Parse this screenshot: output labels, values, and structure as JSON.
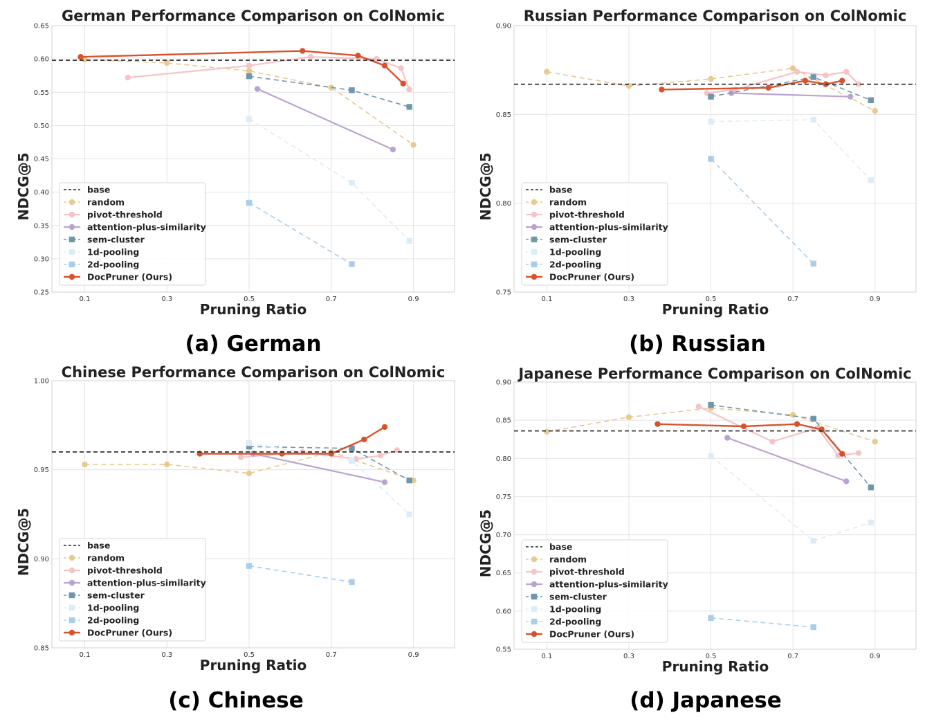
{
  "colors": {
    "base": "#222222",
    "random": "#e8c98f",
    "pivot-threshold": "#f6c3c6",
    "attention-plus-similarity": "#b9a4cf",
    "sem-cluster": "#6f97ab",
    "1d-pooling": "#dcedf9",
    "2d-pooling": "#a9cdeb",
    "docpruner": "#d9522c"
  },
  "chart_data": [
    {
      "type": "line",
      "title": "German Performance Comparison on ColNomic",
      "xlabel": "Pruning Ratio",
      "ylabel": "NDCG@5",
      "caption": "(a) German",
      "xlim": [
        0.02,
        1.0
      ],
      "ylim": [
        0.25,
        0.65
      ],
      "xticks": [
        "0.1",
        "0.3",
        "0.5",
        "0.7",
        "0.9"
      ],
      "yticks": [
        "0.25",
        "0.30",
        "0.35",
        "0.40",
        "0.45",
        "0.50",
        "0.55",
        "0.60",
        "0.65"
      ],
      "base": 0.598,
      "legend": [
        "base",
        "random",
        "pivot-threshold",
        "attention-plus-similarity",
        "sem-cluster",
        "1d-pooling",
        "2d-pooling",
        "DocPruner (Ours)"
      ],
      "series": [
        {
          "key": "random",
          "name": "random",
          "points": [
            [
              0.1,
              0.599
            ],
            [
              0.3,
              0.594
            ],
            [
              0.5,
              0.582
            ],
            [
              0.7,
              0.557
            ],
            [
              0.9,
              0.471
            ]
          ]
        },
        {
          "key": "pivot-threshold",
          "name": "pivot-threshold",
          "points": [
            [
              0.205,
              0.572
            ],
            [
              0.5,
              0.59
            ],
            [
              0.65,
              0.603
            ],
            [
              0.81,
              0.6
            ],
            [
              0.87,
              0.586
            ],
            [
              0.89,
              0.554
            ]
          ]
        },
        {
          "key": "attention-plus-similarity",
          "name": "attention-plus-similarity",
          "points": [
            [
              0.52,
              0.555
            ],
            [
              0.85,
              0.464
            ]
          ]
        },
        {
          "key": "sem-cluster",
          "name": "sem-cluster",
          "points": [
            [
              0.5,
              0.574
            ],
            [
              0.75,
              0.553
            ],
            [
              0.89,
              0.528
            ]
          ]
        },
        {
          "key": "1d-pooling",
          "name": "1d-pooling",
          "points": [
            [
              0.5,
              0.51
            ],
            [
              0.75,
              0.414
            ],
            [
              0.89,
              0.327
            ]
          ]
        },
        {
          "key": "2d-pooling",
          "name": "2d-pooling",
          "points": [
            [
              0.5,
              0.384
            ],
            [
              0.75,
              0.292
            ]
          ]
        },
        {
          "key": "docpruner",
          "name": "DocPruner (Ours)",
          "points": [
            [
              0.09,
              0.603
            ],
            [
              0.63,
              0.612
            ],
            [
              0.765,
              0.605
            ],
            [
              0.83,
              0.59
            ],
            [
              0.875,
              0.563
            ]
          ]
        }
      ]
    },
    {
      "type": "line",
      "title": "Russian Performance Comparison on ColNomic",
      "xlabel": "Pruning Ratio",
      "ylabel": "NDCG@5",
      "caption": "(b) Russian",
      "xlim": [
        0.02,
        1.0
      ],
      "ylim": [
        0.75,
        0.9
      ],
      "xticks": [
        "0.1",
        "0.3",
        "0.5",
        "0.7",
        "0.9"
      ],
      "yticks": [
        "0.75",
        "0.80",
        "0.85",
        "0.90"
      ],
      "base": 0.867,
      "legend": [
        "base",
        "random",
        "pivot-threshold",
        "attention-plus-similarity",
        "sem-cluster",
        "1d-pooling",
        "2d-pooling",
        "DocPruner (Ours)"
      ],
      "series": [
        {
          "key": "random",
          "name": "random",
          "points": [
            [
              0.1,
              0.874
            ],
            [
              0.3,
              0.866
            ],
            [
              0.5,
              0.87
            ],
            [
              0.7,
              0.876
            ],
            [
              0.9,
              0.852
            ]
          ]
        },
        {
          "key": "pivot-threshold",
          "name": "pivot-threshold",
          "points": [
            [
              0.49,
              0.862
            ],
            [
              0.56,
              0.864
            ],
            [
              0.71,
              0.874
            ],
            [
              0.78,
              0.872
            ],
            [
              0.83,
              0.874
            ],
            [
              0.86,
              0.867
            ]
          ]
        },
        {
          "key": "attention-plus-similarity",
          "name": "attention-plus-similarity",
          "points": [
            [
              0.55,
              0.862
            ],
            [
              0.84,
              0.86
            ]
          ]
        },
        {
          "key": "sem-cluster",
          "name": "sem-cluster",
          "points": [
            [
              0.5,
              0.86
            ],
            [
              0.75,
              0.871
            ],
            [
              0.89,
              0.858
            ]
          ]
        },
        {
          "key": "1d-pooling",
          "name": "1d-pooling",
          "points": [
            [
              0.5,
              0.846
            ],
            [
              0.75,
              0.847
            ],
            [
              0.89,
              0.813
            ]
          ]
        },
        {
          "key": "2d-pooling",
          "name": "2d-pooling",
          "points": [
            [
              0.5,
              0.825
            ],
            [
              0.75,
              0.766
            ]
          ]
        },
        {
          "key": "docpruner",
          "name": "DocPruner (Ours)",
          "points": [
            [
              0.38,
              0.864
            ],
            [
              0.64,
              0.865
            ],
            [
              0.73,
              0.869
            ],
            [
              0.78,
              0.867
            ],
            [
              0.82,
              0.869
            ]
          ]
        }
      ]
    },
    {
      "type": "line",
      "title": "Chinese Performance Comparison on ColNomic",
      "xlabel": "Pruning Ratio",
      "ylabel": "NDCG@5",
      "caption": "(c) Chinese",
      "xlim": [
        0.02,
        1.0
      ],
      "ylim": [
        0.85,
        1.0
      ],
      "xticks": [
        "0.1",
        "0.3",
        "0.5",
        "0.7",
        "0.9"
      ],
      "yticks": [
        "0.85",
        "0.90",
        "0.95",
        "1.00"
      ],
      "base": 0.96,
      "legend": [
        "base",
        "random",
        "pivot-threshold",
        "attention-plus-similarity",
        "sem-cluster",
        "1d-pooling",
        "2d-pooling",
        "DocPruner (Ours)"
      ],
      "series": [
        {
          "key": "random",
          "name": "random",
          "points": [
            [
              0.1,
              0.953
            ],
            [
              0.3,
              0.953
            ],
            [
              0.5,
              0.948
            ],
            [
              0.7,
              0.96
            ],
            [
              0.9,
              0.944
            ]
          ]
        },
        {
          "key": "pivot-threshold",
          "name": "pivot-threshold",
          "points": [
            [
              0.48,
              0.957
            ],
            [
              0.63,
              0.96
            ],
            [
              0.76,
              0.956
            ],
            [
              0.82,
              0.958
            ],
            [
              0.86,
              0.961
            ]
          ]
        },
        {
          "key": "attention-plus-similarity",
          "name": "attention-plus-similarity",
          "points": [
            [
              0.51,
              0.959
            ],
            [
              0.83,
              0.943
            ]
          ]
        },
        {
          "key": "sem-cluster",
          "name": "sem-cluster",
          "points": [
            [
              0.5,
              0.963
            ],
            [
              0.75,
              0.962
            ],
            [
              0.89,
              0.944
            ]
          ]
        },
        {
          "key": "1d-pooling",
          "name": "1d-pooling",
          "points": [
            [
              0.5,
              0.965
            ],
            [
              0.75,
              0.955
            ],
            [
              0.89,
              0.925
            ]
          ]
        },
        {
          "key": "2d-pooling",
          "name": "2d-pooling",
          "points": [
            [
              0.5,
              0.896
            ],
            [
              0.75,
              0.887
            ]
          ]
        },
        {
          "key": "docpruner",
          "name": "DocPruner (Ours)",
          "points": [
            [
              0.38,
              0.959
            ],
            [
              0.58,
              0.959
            ],
            [
              0.7,
              0.959
            ],
            [
              0.78,
              0.967
            ],
            [
              0.83,
              0.974
            ]
          ]
        }
      ]
    },
    {
      "type": "line",
      "title": "Japanese Performance Comparison on ColNomic",
      "xlabel": "Pruning Ratio",
      "ylabel": "NDCG@5",
      "caption": "(d) Japanese",
      "xlim": [
        0.02,
        1.0
      ],
      "ylim": [
        0.55,
        0.9
      ],
      "xticks": [
        "0.1",
        "0.3",
        "0.5",
        "0.7",
        "0.9"
      ],
      "yticks": [
        "0.55",
        "0.60",
        "0.65",
        "0.70",
        "0.75",
        "0.80",
        "0.85",
        "0.90"
      ],
      "base": 0.836,
      "legend": [
        "base",
        "random",
        "pivot-threshold",
        "attention-plus-similarity",
        "sem-cluster",
        "1d-pooling",
        "2d-pooling",
        "DocPruner (Ours)"
      ],
      "series": [
        {
          "key": "random",
          "name": "random",
          "points": [
            [
              0.1,
              0.835
            ],
            [
              0.3,
              0.854
            ],
            [
              0.5,
              0.866
            ],
            [
              0.7,
              0.857
            ],
            [
              0.9,
              0.822
            ]
          ]
        },
        {
          "key": "pivot-threshold",
          "name": "pivot-threshold",
          "points": [
            [
              0.47,
              0.868
            ],
            [
              0.65,
              0.822
            ],
            [
              0.76,
              0.84
            ],
            [
              0.81,
              0.804
            ],
            [
              0.86,
              0.807
            ]
          ]
        },
        {
          "key": "attention-plus-similarity",
          "name": "attention-plus-similarity",
          "points": [
            [
              0.54,
              0.827
            ],
            [
              0.83,
              0.77
            ]
          ]
        },
        {
          "key": "sem-cluster",
          "name": "sem-cluster",
          "points": [
            [
              0.5,
              0.87
            ],
            [
              0.75,
              0.852
            ],
            [
              0.89,
              0.762
            ]
          ]
        },
        {
          "key": "1d-pooling",
          "name": "1d-pooling",
          "points": [
            [
              0.5,
              0.803
            ],
            [
              0.75,
              0.692
            ],
            [
              0.89,
              0.716
            ]
          ]
        },
        {
          "key": "2d-pooling",
          "name": "2d-pooling",
          "points": [
            [
              0.5,
              0.591
            ],
            [
              0.75,
              0.579
            ]
          ]
        },
        {
          "key": "docpruner",
          "name": "DocPruner (Ours)",
          "points": [
            [
              0.37,
              0.845
            ],
            [
              0.58,
              0.842
            ],
            [
              0.71,
              0.845
            ],
            [
              0.77,
              0.838
            ],
            [
              0.82,
              0.806
            ]
          ]
        }
      ]
    }
  ]
}
